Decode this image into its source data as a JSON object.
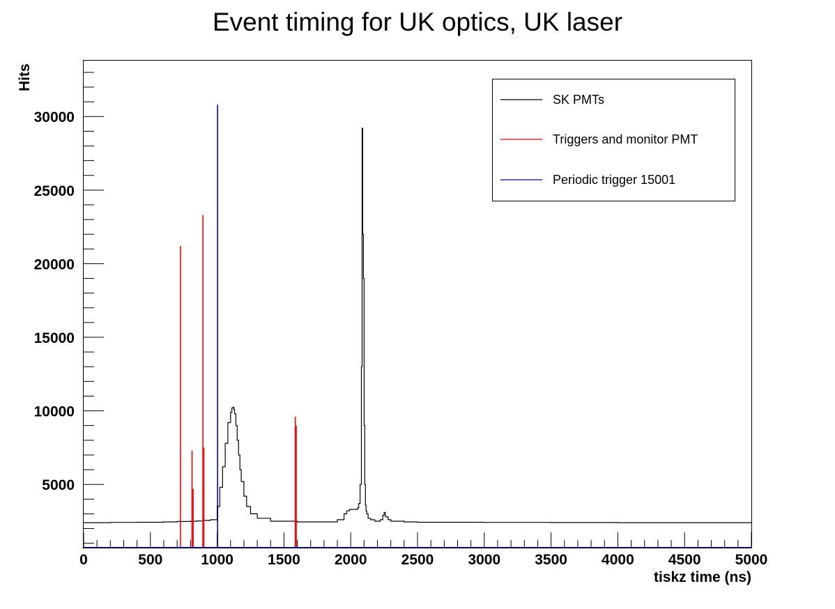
{
  "chart_data": {
    "type": "line",
    "title": "Event timing for UK optics, UK laser",
    "xlabel": "tiskz time (ns)",
    "ylabel": "Hits",
    "xlim": [
      0,
      5000
    ],
    "ylim": [
      700,
      33800
    ],
    "x_ticks": [
      0,
      500,
      1000,
      1500,
      2000,
      2500,
      3000,
      3500,
      4000,
      4500,
      5000
    ],
    "x_tick_labels": [
      "0",
      "500",
      "1000",
      "1500",
      "2000",
      "2500",
      "3000",
      "3500",
      "4000",
      "4500",
      "5000"
    ],
    "y_ticks": [
      5000,
      10000,
      15000,
      20000,
      25000,
      30000
    ],
    "y_tick_labels": [
      "5000",
      "10000",
      "15000",
      "20000",
      "25000",
      "30000"
    ],
    "grid": false,
    "legend_position": "top-right",
    "series": [
      {
        "name": "SK PMTs",
        "color": "#000000",
        "style": "histogram",
        "x": [
          0,
          200,
          400,
          600,
          700,
          800,
          850,
          900,
          950,
          1000,
          1020,
          1040,
          1060,
          1080,
          1100,
          1110,
          1120,
          1125,
          1130,
          1140,
          1150,
          1160,
          1170,
          1180,
          1200,
          1220,
          1250,
          1300,
          1400,
          1600,
          1800,
          1900,
          1950,
          1970,
          1990,
          2010,
          2030,
          2050,
          2060,
          2070,
          2080,
          2085,
          2090,
          2095,
          2100,
          2105,
          2110,
          2115,
          2120,
          2130,
          2150,
          2180,
          2200,
          2220,
          2240,
          2250,
          2260,
          2280,
          2300,
          2400,
          2500,
          3000,
          3500,
          4000,
          4500,
          5000
        ],
        "y": [
          2400,
          2420,
          2430,
          2450,
          2480,
          2500,
          2520,
          2550,
          2600,
          3500,
          4800,
          6200,
          7800,
          9200,
          9900,
          10200,
          10250,
          10100,
          9800,
          9000,
          8000,
          7000,
          6000,
          5200,
          4200,
          3500,
          3000,
          2700,
          2500,
          2450,
          2450,
          2600,
          3000,
          3200,
          3300,
          3300,
          3300,
          3400,
          3700,
          5000,
          13000,
          29200,
          22000,
          19000,
          9000,
          5000,
          3600,
          3200,
          3000,
          2700,
          2600,
          2500,
          2500,
          2600,
          2900,
          3100,
          2800,
          2600,
          2500,
          2450,
          2430,
          2420,
          2410,
          2400,
          2400,
          2400
        ]
      },
      {
        "name": "Triggers and monitor PMT",
        "color": "#ff0000",
        "style": "spikes",
        "x": [
          725,
          812,
          820,
          893,
          900,
          1585,
          1592
        ],
        "y": [
          21200,
          7300,
          4700,
          23300,
          7500,
          9600,
          9000
        ]
      },
      {
        "name": "Periodic trigger 15001",
        "color": "#0000ff",
        "style": "spikes",
        "x": [
          1003
        ],
        "y": [
          30800
        ]
      }
    ]
  }
}
